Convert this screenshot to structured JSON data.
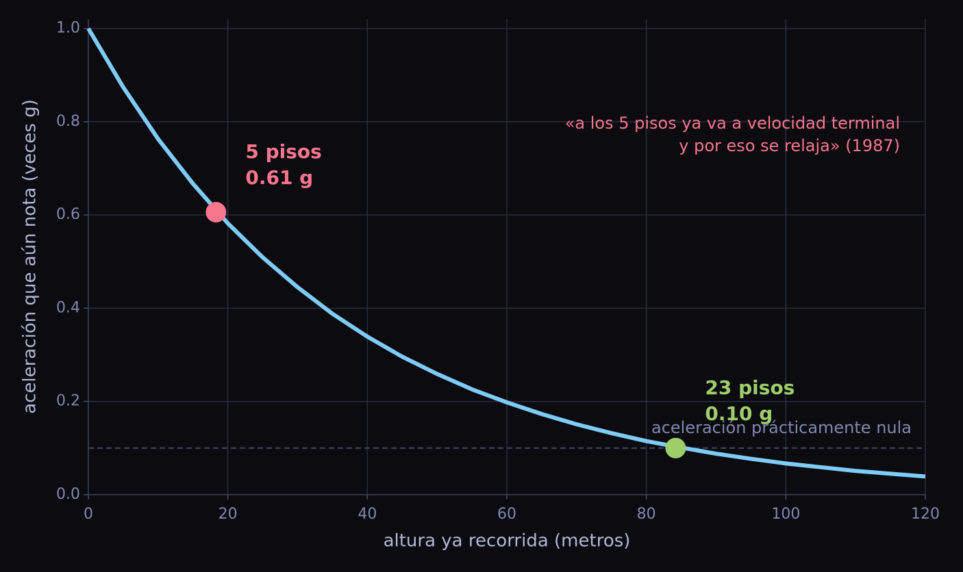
{
  "chart_data": {
    "type": "line",
    "xlabel": "altura ya recorrida  (metros)",
    "ylabel": "aceleración que aún nota  (veces g)",
    "xlim": [
      0,
      120
    ],
    "ylim": [
      0,
      1.02
    ],
    "xticks": [
      0,
      20,
      40,
      60,
      80,
      100,
      120
    ],
    "yticks": [
      {
        "value": 0,
        "label": "0.0"
      },
      0.2,
      0.4,
      0.6,
      0.8,
      {
        "value": 1,
        "label": "1.0"
      }
    ],
    "grid": true,
    "series": [
      {
        "color": "#7ecbf5",
        "x": [
          0,
          5,
          10,
          15,
          20,
          25,
          30,
          35,
          40,
          45,
          50,
          55,
          60,
          65,
          70,
          75,
          80,
          85,
          90,
          95,
          100,
          105,
          110,
          115,
          120
        ],
        "values": [
          1.0,
          0.874,
          0.763,
          0.667,
          0.582,
          0.509,
          0.445,
          0.388,
          0.339,
          0.296,
          0.259,
          0.226,
          0.198,
          0.173,
          0.151,
          0.132,
          0.115,
          0.101,
          0.088,
          0.077,
          0.067,
          0.059,
          0.051,
          0.045,
          0.039
        ]
      }
    ],
    "points": [
      {
        "name": "5 pisos",
        "x": 18.3,
        "value": 0.606,
        "value_label": "0.61 g",
        "color": "#f7768e"
      },
      {
        "name": "23 pisos",
        "x": 84.2,
        "value": 0.1,
        "value_label": "0.10 g",
        "color": "#9ece6a"
      }
    ],
    "reference_line": {
      "value": 0.1,
      "label": "aceleración prácticamente nula",
      "color": "#3a3d55"
    },
    "annotation": {
      "lines": [
        "«a los 5 pisos ya va a velocidad terminal",
        "y por eso se relaja»  (1987)"
      ],
      "color": "#f7768e"
    }
  }
}
